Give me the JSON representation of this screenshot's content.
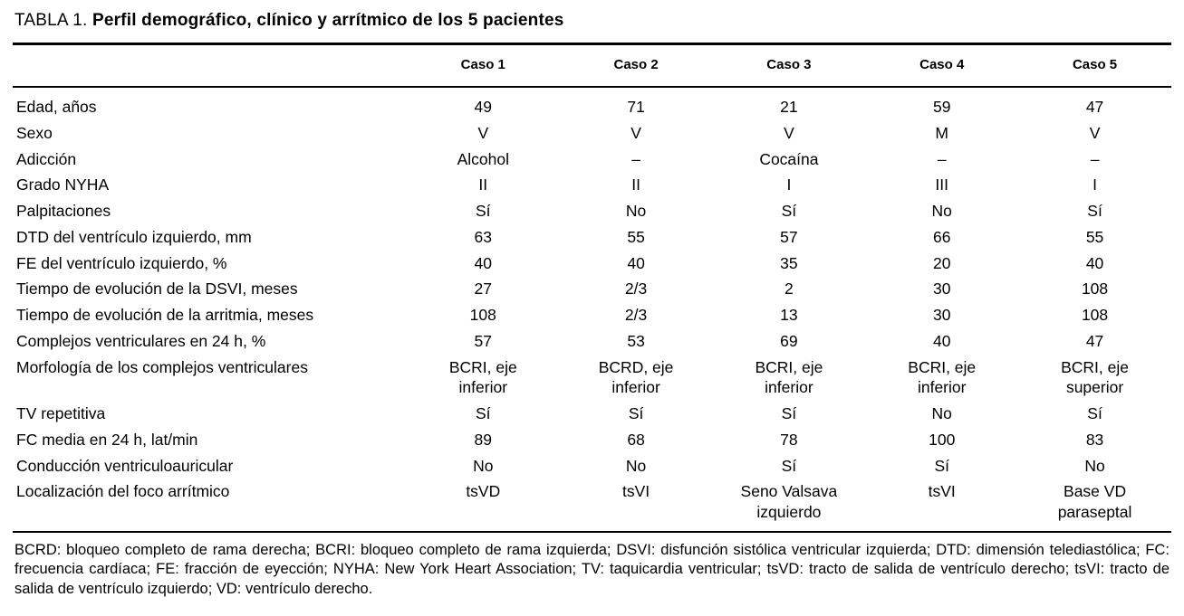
{
  "title": {
    "prefix": "TABLA 1.",
    "text": "Perfil demográfico, clínico y arrítmico de los 5 pacientes"
  },
  "table": {
    "columns": [
      "Caso 1",
      "Caso 2",
      "Caso 3",
      "Caso 4",
      "Caso 5"
    ],
    "rows": [
      {
        "label": "Edad, años",
        "values": [
          "49",
          "71",
          "21",
          "59",
          "47"
        ]
      },
      {
        "label": "Sexo",
        "values": [
          "V",
          "V",
          "V",
          "M",
          "V"
        ]
      },
      {
        "label": "Adicción",
        "values": [
          "Alcohol",
          "–",
          "Cocaína",
          "–",
          "–"
        ]
      },
      {
        "label": "Grado NYHA",
        "values": [
          "II",
          "II",
          "I",
          "III",
          "I"
        ]
      },
      {
        "label": "Palpitaciones",
        "values": [
          "Sí",
          "No",
          "Sí",
          "No",
          "Sí"
        ]
      },
      {
        "label": "DTD del ventrículo izquierdo, mm",
        "values": [
          "63",
          "55",
          "57",
          "66",
          "55"
        ]
      },
      {
        "label": "FE del ventrículo izquierdo, %",
        "values": [
          "40",
          "40",
          "35",
          "20",
          "40"
        ]
      },
      {
        "label": "Tiempo de evolución de la DSVI, meses",
        "values": [
          "27",
          "2/3",
          "2",
          "30",
          "108"
        ]
      },
      {
        "label": "Tiempo de evolución de la arritmia, meses",
        "values": [
          "108",
          "2/3",
          "13",
          "30",
          "108"
        ]
      },
      {
        "label": "Complejos ventriculares en 24 h, %",
        "values": [
          "57",
          "53",
          "69",
          "40",
          "47"
        ]
      },
      {
        "label": "Morfología de los complejos ventriculares",
        "values": [
          "BCRI, eje\ninferior",
          "BCRD, eje\ninferior",
          "BCRI, eje\ninferior",
          "BCRI, eje\ninferior",
          "BCRI, eje\nsuperior"
        ]
      },
      {
        "label": "TV repetitiva",
        "values": [
          "Sí",
          "Sí",
          "Sí",
          "No",
          "Sí"
        ]
      },
      {
        "label": "FC media en 24 h, lat/min",
        "values": [
          "89",
          "68",
          "78",
          "100",
          "83"
        ]
      },
      {
        "label": "Conducción ventriculoauricular",
        "values": [
          "No",
          "No",
          "Sí",
          "Sí",
          "No"
        ]
      },
      {
        "label": "Localización del foco arrítmico",
        "values": [
          "tsVD",
          "tsVI",
          "Seno Valsava\nizquierdo",
          "tsVI",
          "Base VD\nparaseptal"
        ]
      }
    ]
  },
  "footnote": "BCRD: bloqueo completo de rama derecha; BCRI: bloqueo completo de rama izquierda; DSVI: disfunción sistólica ventricular izquierda; DTD: dimensión telediastólica; FC: frecuencia cardíaca; FE: fracción de eyección; NYHA: New York Heart Association; TV: taquicardia ventricular; tsVD: tracto de salida de ventrículo derecho; tsVI: tracto de salida de ventrículo izquierdo; VD: ventrículo derecho."
}
